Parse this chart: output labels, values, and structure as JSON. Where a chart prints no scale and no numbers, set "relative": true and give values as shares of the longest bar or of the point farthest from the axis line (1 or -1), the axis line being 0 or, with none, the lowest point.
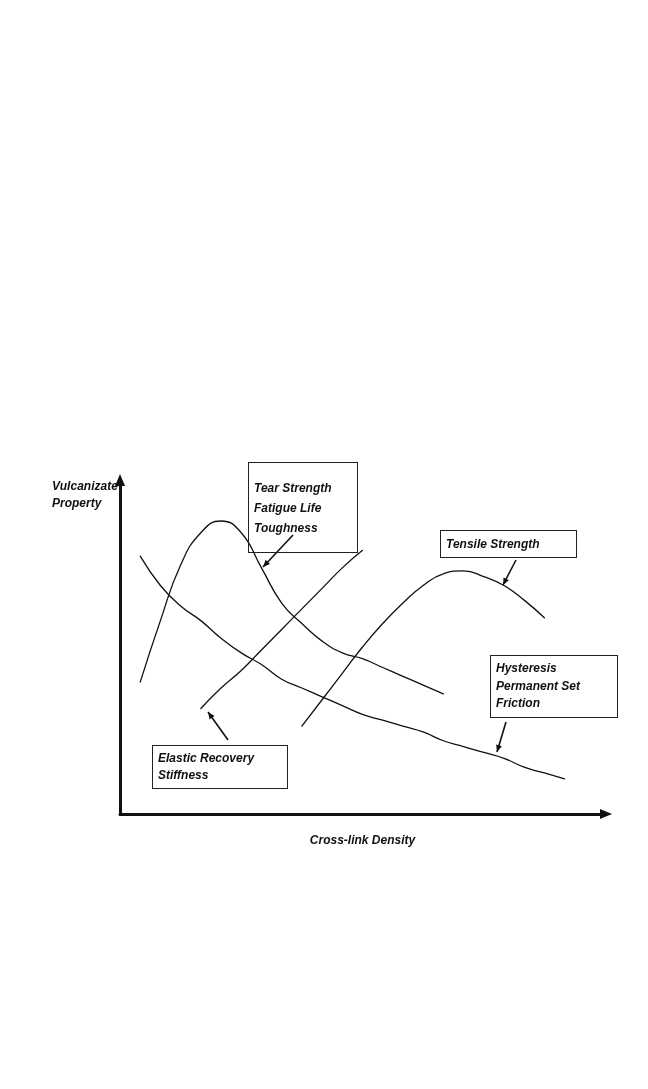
{
  "chart_data": {
    "type": "line",
    "relative": true,
    "xlabel": "Cross-link Density",
    "ylabel": "Vulcanizate\nProperty",
    "categories": [
      null,
      null,
      null,
      null,
      null,
      null,
      null,
      null,
      null,
      null,
      null,
      null,
      null,
      null,
      null,
      null,
      null,
      null,
      null,
      null,
      null,
      null,
      null,
      null,
      null
    ],
    "series": [
      {
        "color": "#111111",
        "values": [
          null,
          0.45,
          0.66,
          0.85,
          0.96,
          1.0,
          0.96,
          0.84,
          0.72,
          0.65,
          0.59,
          0.55,
          0.53,
          0.5,
          0.47,
          0.44,
          0.41,
          null,
          null,
          null,
          null,
          null,
          null,
          null,
          null
        ]
      },
      {
        "color": "#111111",
        "values": [
          null,
          0.88,
          0.78,
          0.71,
          0.66,
          0.6,
          0.55,
          0.51,
          0.46,
          0.43,
          0.4,
          0.37,
          0.34,
          0.32,
          0.3,
          0.28,
          0.25,
          0.23,
          0.21,
          0.19,
          0.16,
          0.14,
          0.12,
          null,
          null
        ]
      },
      {
        "color": "#111111",
        "values": [
          null,
          null,
          null,
          null,
          0.36,
          0.43,
          0.49,
          0.56,
          0.63,
          0.7,
          0.77,
          0.84,
          0.9,
          null,
          null,
          null,
          null,
          null,
          null,
          null,
          null,
          null,
          null,
          null,
          null
        ]
      },
      {
        "color": "#111111",
        "values": [
          null,
          null,
          null,
          null,
          null,
          null,
          null,
          null,
          null,
          0.3,
          0.39,
          0.48,
          0.57,
          0.65,
          0.72,
          0.78,
          0.82,
          0.83,
          0.81,
          0.78,
          0.73,
          0.67,
          null,
          null,
          null
        ]
      }
    ],
    "annotations": [
      "Tear Strength\nFatigue Life\nToughness",
      "Tensile Strength",
      "Hysteresis\nPermanent Set\nFriction",
      "Elastic Recovery\nStiffness"
    ],
    "marker": "none",
    "line_style": "solid"
  }
}
